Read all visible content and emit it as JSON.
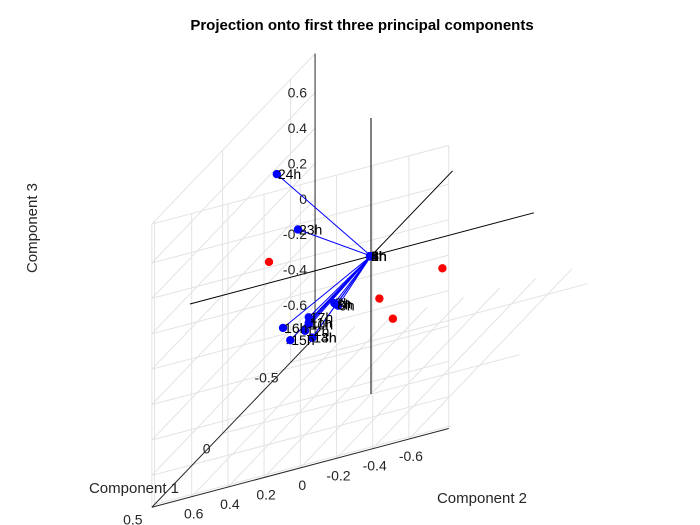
{
  "chart_data": {
    "type": "scatter",
    "subtype": "pca-biplot-3d",
    "title": "Projection onto first three principal components",
    "xlabel": "Component 1",
    "ylabel": "Component 2",
    "zlabel": "Component 3",
    "xticks": [
      "-0.5",
      "0",
      "0.5"
    ],
    "yticks": [
      "-0.6",
      "-0.4",
      "-0.2",
      "0",
      "0.2",
      "0.4",
      "0.6"
    ],
    "zticks": [
      "0.6",
      "0.4",
      "0.2",
      "0",
      "-0.2",
      "-0.4",
      "-0.6"
    ],
    "grid": true,
    "colors": {
      "vectors": "#0000FF",
      "loading_points": "#0000FF",
      "scores": "#FF0000",
      "axes_lines": "#000000"
    },
    "loadings": [
      {
        "label": "24h",
        "component1": 0.27,
        "component2": 0.5,
        "component3": 0.62
      },
      {
        "label": "23h",
        "component1": 0.18,
        "component2": 0.39,
        "component3": 0.27
      },
      {
        "label": "7h",
        "component1": 0.03,
        "component2": 0.2,
        "component3": -0.21
      },
      {
        "label": "8h",
        "component1": 0.03,
        "component2": 0.19,
        "component3": -0.22
      },
      {
        "label": "9h",
        "component1": 0.02,
        "component2": 0.18,
        "component3": -0.23
      },
      {
        "label": "17h",
        "component1": 0.05,
        "component2": 0.34,
        "component3": -0.25
      },
      {
        "label": "11h",
        "component1": 0.05,
        "component2": 0.34,
        "component3": -0.28
      },
      {
        "label": "10h",
        "component1": 0.05,
        "component2": 0.34,
        "component3": -0.29
      },
      {
        "label": "16h",
        "component1": 0.08,
        "component2": 0.48,
        "component3": -0.27
      },
      {
        "label": "15h",
        "component1": 0.08,
        "component2": 0.44,
        "component3": -0.35
      },
      {
        "label": "12h",
        "component1": 0.06,
        "component2": 0.36,
        "component3": -0.32
      },
      {
        "label": "13h",
        "component1": 0.06,
        "component2": 0.32,
        "component3": -0.37
      },
      {
        "label": "14h",
        "component1": 0.06,
        "component2": 0.32,
        "component3": -0.37
      },
      {
        "label": "1h",
        "component1": 0.0,
        "component2": 0.005,
        "component3": 0.0
      },
      {
        "label": "2h",
        "component1": 0.0,
        "component2": 0.005,
        "component3": 0.0
      },
      {
        "label": "3h",
        "component1": 0.0,
        "component2": 0.005,
        "component3": 0.0
      },
      {
        "label": "4h",
        "component1": 0.0,
        "component2": 0.005,
        "component3": 0.0
      },
      {
        "label": "5h",
        "component1": 0.0,
        "component2": 0.005,
        "component3": 0.0
      },
      {
        "label": "6h",
        "component1": 0.0,
        "component2": 0.005,
        "component3": 0.0
      }
    ],
    "scores": [
      {
        "component1": 0.18,
        "component2": 0.55,
        "component3": 0.13
      },
      {
        "component1": 0.05,
        "component2": -0.05,
        "component3": -0.25
      },
      {
        "component1": -0.06,
        "component2": -0.39,
        "component3": -0.18
      },
      {
        "component1": 0.12,
        "component2": -0.13,
        "component3": -0.38
      }
    ]
  }
}
